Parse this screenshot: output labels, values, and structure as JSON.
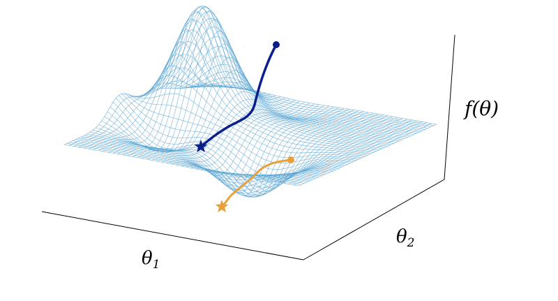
{
  "labels": {
    "theta1": "θ",
    "theta1_sub": "1",
    "theta2": "θ",
    "theta2_sub": "2",
    "f_label": "f(θ)"
  },
  "colors": {
    "mesh": "#5aa6d4",
    "path_dark": "#0b1f8a",
    "path_orange": "#e8a13a",
    "axis": "#000000"
  },
  "paths": [
    {
      "name": "dark-descent-path",
      "color": "#0b1f8a",
      "start_marker": "circle",
      "end_marker": "star"
    },
    {
      "name": "orange-descent-path",
      "color": "#e8a13a",
      "start_marker": "circle",
      "end_marker": "star"
    }
  ]
}
